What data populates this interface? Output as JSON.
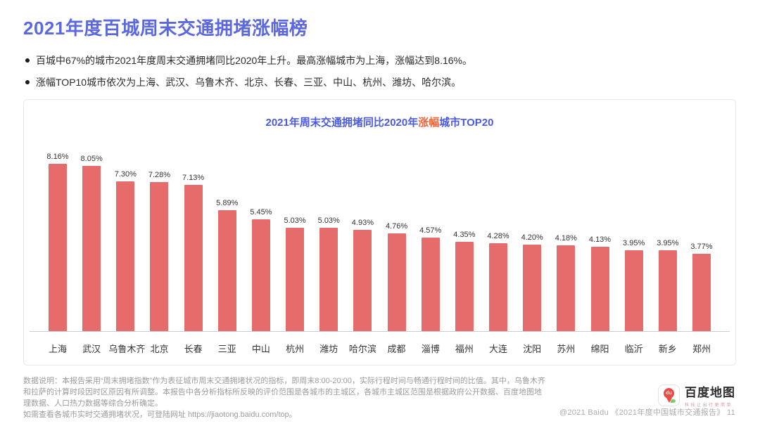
{
  "header": {
    "title": "2021年度百城周末交通拥堵涨幅榜",
    "bullets": [
      "百城中67%的城市2021年度周末交通拥堵同比2020年上升。最高涨幅城市为上海，涨幅达到8.16%。",
      "涨幅TOP10城市依次为上海、武汉、乌鲁木齐、北京、长春、三亚、中山、杭州、潍坊、哈尔滨。"
    ]
  },
  "chart": {
    "title_prefix": "2021年周末交通拥堵同比2020年",
    "title_highlight": "涨幅",
    "title_suffix": "城市TOP20"
  },
  "chart_data": {
    "type": "bar",
    "title": "2021年周末交通拥堵同比2020年涨幅城市TOP20",
    "categories": [
      "上海",
      "武汉",
      "乌鲁木齐",
      "北京",
      "长春",
      "三亚",
      "中山",
      "杭州",
      "潍坊",
      "哈尔滨",
      "成都",
      "淄博",
      "福州",
      "大连",
      "沈阳",
      "苏州",
      "绵阳",
      "临沂",
      "新乡",
      "郑州"
    ],
    "values": [
      8.16,
      8.05,
      7.3,
      7.28,
      7.13,
      5.89,
      5.45,
      5.03,
      5.03,
      4.93,
      4.76,
      4.57,
      4.35,
      4.28,
      4.2,
      4.18,
      4.13,
      3.95,
      3.95,
      3.77
    ],
    "data_labels": [
      "8.16%",
      "8.05%",
      "7.30%",
      "7.28%",
      "7.13%",
      "5.89%",
      "5.45%",
      "5.03%",
      "5.03%",
      "4.93%",
      "4.76%",
      "4.57%",
      "4.35%",
      "4.28%",
      "4.20%",
      "4.18%",
      "4.13%",
      "3.95%",
      "3.95%",
      "3.77%"
    ],
    "xlabel": "",
    "ylabel": "",
    "ylim": [
      0,
      8.16
    ],
    "grid": false,
    "legend": false,
    "bar_color": "#E66B6B"
  },
  "footer": {
    "note_paragraph1": "数据说明：本报告采用“周末拥堵指数”作为表征城市周末交通拥堵状况的指标，即周末8:00-20:00，实际行程时间与畅通行程时间的比值。其中，乌鲁木齐和拉萨的计算时段因时区原因有所调整。本报告中各分析指标所反映的评价范围是各城市的主城区，各城市主城区范围是根据政府公开数据、百度地图地理数据、人口热力数据等综合分析确定。",
    "note_paragraph2": "如需查看各城市实时交通拥堵状况，可登陆网址 https://jiaotong.baidu.com/top。",
    "brand_name": "百度地图",
    "brand_tagline": "科技让出行更简单",
    "brand_pin_text": "du",
    "attribution": "@2021 Baidu 《2021年度中国城市交通报告》 11"
  },
  "colors": {
    "page_title": "#5B68E0",
    "chart_title": "#4A5AE1",
    "chart_title_highlight": "#F0653C",
    "bar": "#E66B6B",
    "axis_line": "#cccccc",
    "footer_text": "#9b9b9b"
  }
}
